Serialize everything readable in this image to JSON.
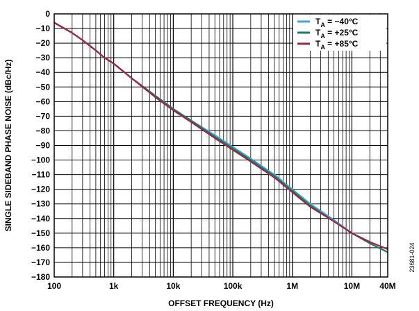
{
  "chart_data": {
    "type": "line",
    "xscale": "log",
    "xlim": [
      100,
      40000000
    ],
    "ylim": [
      -180,
      0
    ],
    "xlabel": "OFFSET FREQUENCY (Hz)",
    "ylabel": "SINGLE SIDEBAND PHASE NOISE (dBc/Hz)",
    "x_tick_labels": [
      {
        "value": 100,
        "label": "100"
      },
      {
        "value": 1000,
        "label": "1k"
      },
      {
        "value": 10000,
        "label": "10k"
      },
      {
        "value": 100000,
        "label": "100k"
      },
      {
        "value": 1000000,
        "label": "1M"
      },
      {
        "value": 10000000,
        "label": "10M"
      },
      {
        "value": 40000000,
        "label": "40M"
      }
    ],
    "y_ticks": [
      0,
      -10,
      -20,
      -30,
      -40,
      -50,
      -60,
      -70,
      -80,
      -90,
      -100,
      -110,
      -120,
      -130,
      -140,
      -150,
      -160,
      -170,
      -180
    ],
    "y_tick_labels": [
      "0",
      "−10",
      "−20",
      "−30",
      "−40",
      "−50",
      "−60",
      "−70",
      "−80",
      "−90",
      "−100",
      "−110",
      "−120",
      "−130",
      "−140",
      "−150",
      "−160",
      "−170",
      "−180"
    ],
    "grid": true,
    "legend_position": "top-right",
    "series": [
      {
        "name": "T",
        "name_sub": "A",
        "name_rest": " = −40°C",
        "color": "#3aaad9",
        "x": [
          100,
          200,
          300,
          500,
          700,
          1000,
          2000,
          5000,
          10000,
          20000,
          50000,
          100000,
          200000,
          500000,
          1000000,
          2000000,
          5000000,
          10000000,
          20000000,
          40000000
        ],
        "y": [
          -6,
          -13,
          -18,
          -25,
          -30,
          -34,
          -44,
          -56,
          -65,
          -73,
          -83,
          -91,
          -99,
          -110,
          -120,
          -130,
          -141,
          -150,
          -157,
          -163
        ]
      },
      {
        "name": "T",
        "name_sub": "A",
        "name_rest": " = +25°C",
        "color": "#1f7a66",
        "x": [
          100,
          200,
          300,
          500,
          700,
          1000,
          2000,
          5000,
          10000,
          20000,
          50000,
          100000,
          200000,
          500000,
          1000000,
          2000000,
          5000000,
          10000000,
          20000000,
          40000000
        ],
        "y": [
          -6,
          -13,
          -18,
          -25,
          -30,
          -34,
          -44,
          -56,
          -65,
          -73,
          -84,
          -92,
          -100,
          -111,
          -121,
          -131,
          -142,
          -150,
          -157,
          -163
        ]
      },
      {
        "name": "T",
        "name_sub": "A",
        "name_rest": " = +85°C",
        "color": "#a3233f",
        "x": [
          100,
          200,
          300,
          500,
          700,
          1000,
          2000,
          5000,
          10000,
          20000,
          50000,
          100000,
          200000,
          500000,
          1000000,
          2000000,
          5000000,
          10000000,
          20000000,
          40000000
        ],
        "y": [
          -6,
          -13,
          -18,
          -25,
          -30,
          -34,
          -44,
          -57,
          -66,
          -74,
          -85,
          -93,
          -101,
          -112,
          -122,
          -132,
          -142,
          -150,
          -156,
          -161
        ]
      }
    ]
  },
  "figure_id": "23681-024"
}
